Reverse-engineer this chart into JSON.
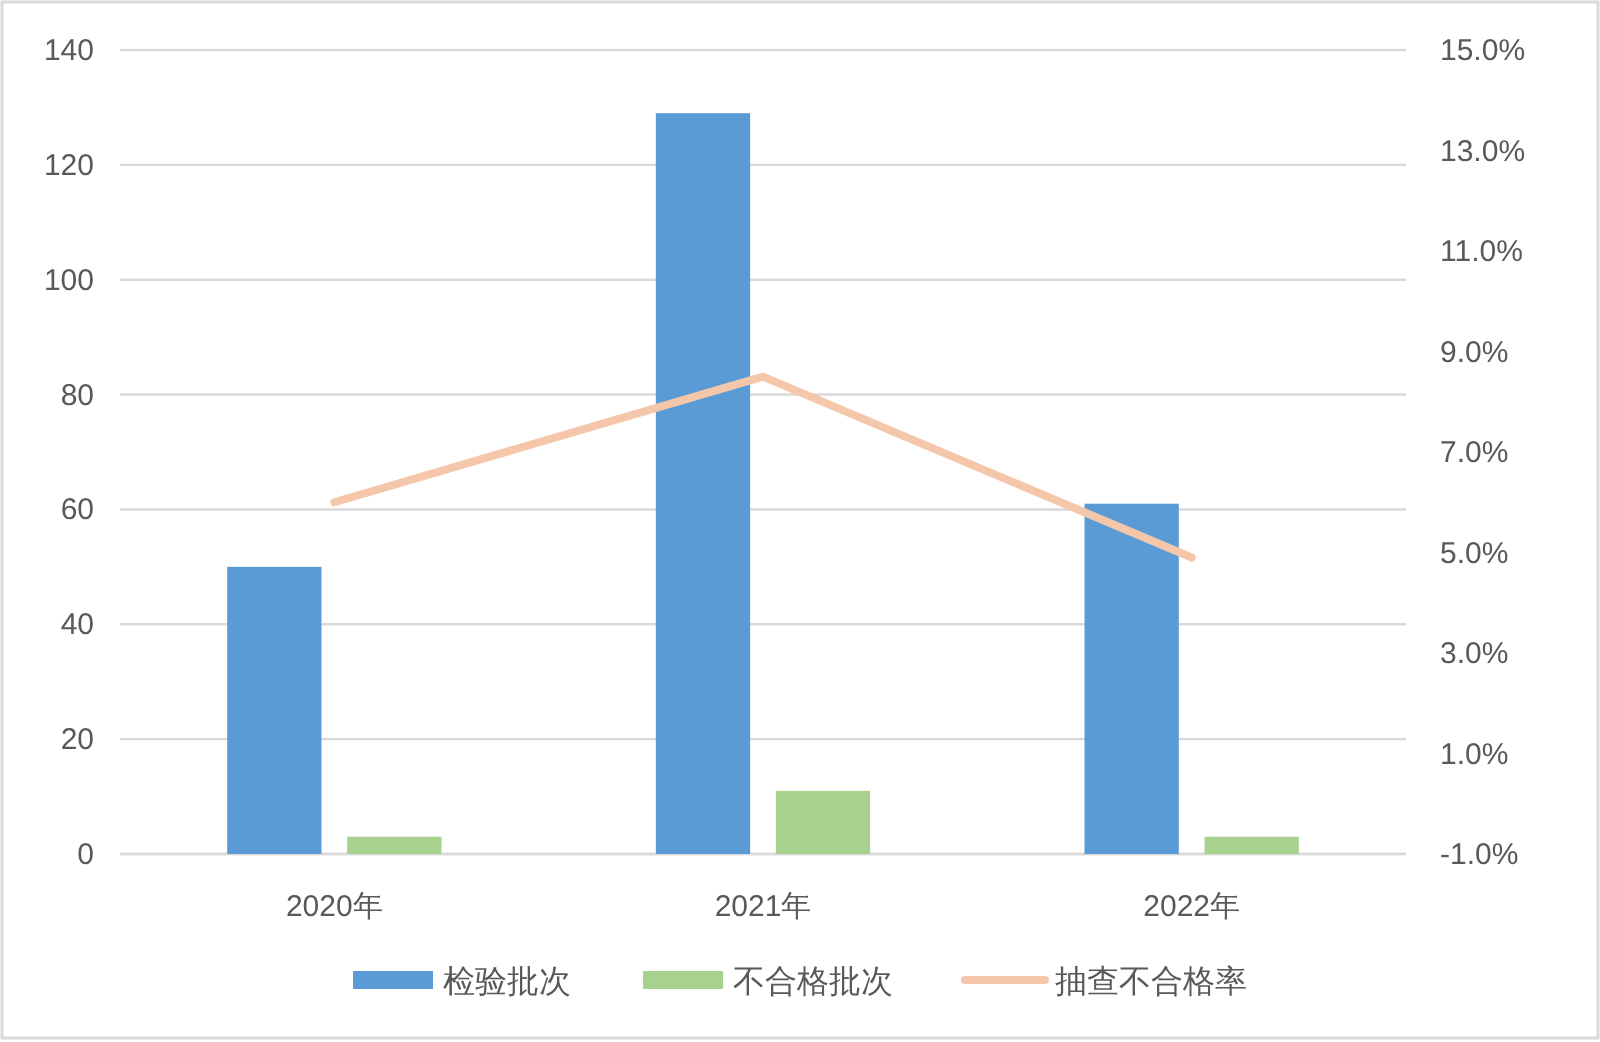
{
  "chart_data": {
    "type": "bar",
    "categories": [
      "2020年",
      "2021年",
      "2022年"
    ],
    "series": [
      {
        "name": "检验批次",
        "color": "#5b9bd5",
        "values": [
          50,
          129,
          61
        ]
      },
      {
        "name": "不合格批次",
        "color": "#a9d18e",
        "values": [
          3,
          11,
          3
        ]
      },
      {
        "name": "抽查不合格率",
        "type": "line",
        "axis": "y2",
        "color": "#f4c7ab",
        "values": [
          6.0,
          8.5,
          4.9
        ]
      }
    ],
    "ylim": [
      0,
      140
    ],
    "yticks": [
      0,
      20,
      40,
      60,
      80,
      100,
      120,
      140
    ],
    "y2lim": [
      -1,
      15
    ],
    "y2ticks": [
      {
        "value": -1,
        "label": "-1.0%"
      },
      {
        "value": 1,
        "label": "1.0%"
      },
      {
        "value": 3,
        "label": "3.0%"
      },
      {
        "value": 5,
        "label": "5.0%"
      },
      {
        "value": 7,
        "label": "7.0%"
      },
      {
        "value": 9,
        "label": "9.0%"
      },
      {
        "value": 11,
        "label": "11.0%"
      },
      {
        "value": 13,
        "label": "13.0%"
      },
      {
        "value": 15,
        "label": "15.0%"
      }
    ],
    "grid": "y",
    "legend": "bottom"
  }
}
